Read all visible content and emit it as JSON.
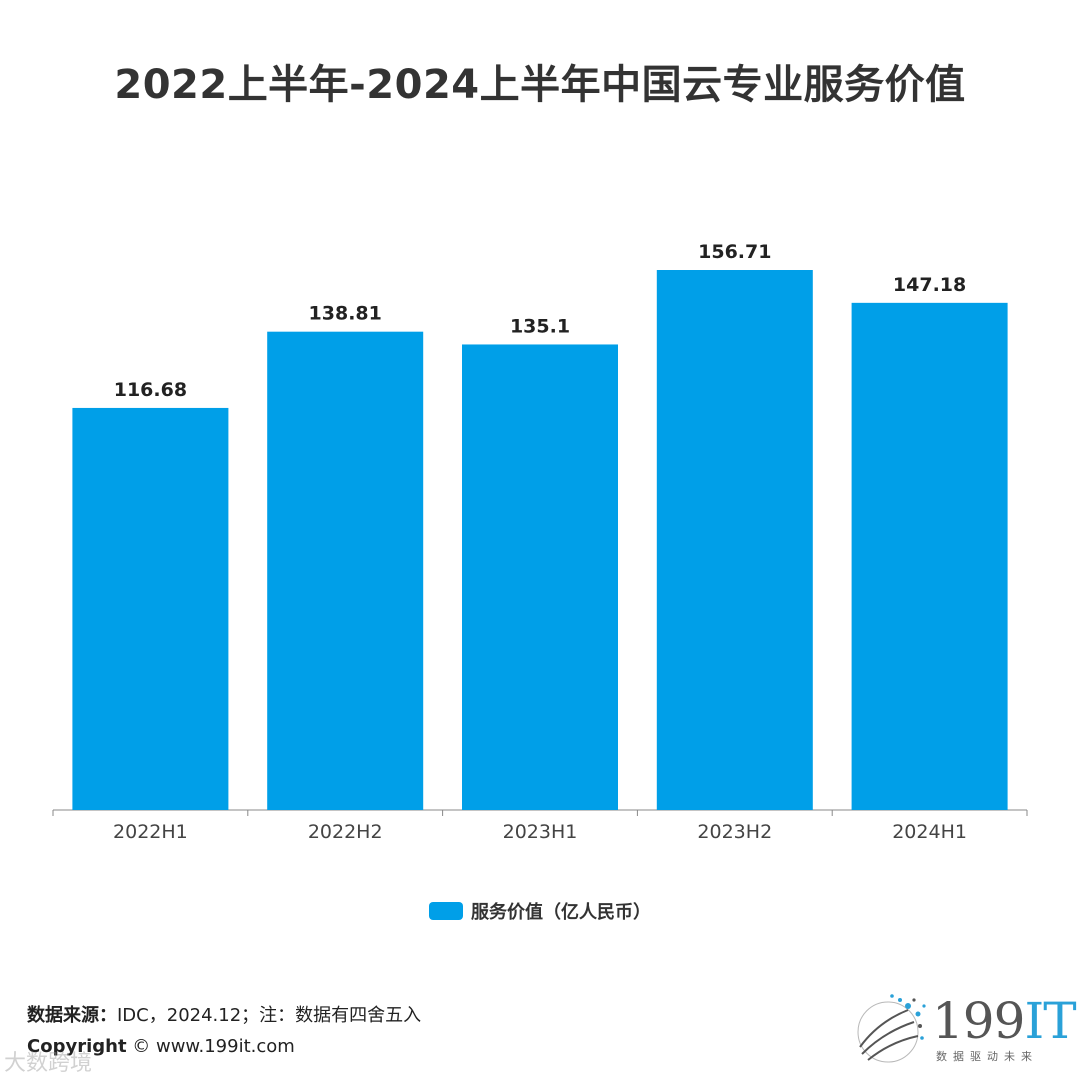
{
  "chart_data": {
    "type": "bar",
    "title": "2022上半年-2024上半年中国云专业服务价值",
    "categories": [
      "2022H1",
      "2022H2",
      "2023H1",
      "2023H2",
      "2024H1"
    ],
    "values": [
      116.68,
      138.81,
      135.1,
      156.71,
      147.18
    ],
    "value_labels": [
      "116.68",
      "138.81",
      "135.1",
      "156.71",
      "147.18"
    ],
    "series_name": "服务价值（亿人民币）",
    "ylim": [
      0,
      180
    ],
    "xlabel": "",
    "ylabel": "",
    "grid": false,
    "legend": "bottom-center"
  },
  "colors": {
    "bar": "#009FE8",
    "axis": "#888888"
  },
  "footer": {
    "source_label": "数据来源：",
    "source_text": "IDC，2024.12；注：数据有四舍五入",
    "copyright_label": "Copyright",
    "copyright_text": " ©  www.199it.com",
    "watermark": "大数跨境"
  },
  "logo": {
    "main": "199",
    "accent": "IT",
    "tagline": "数据驱动未来"
  }
}
